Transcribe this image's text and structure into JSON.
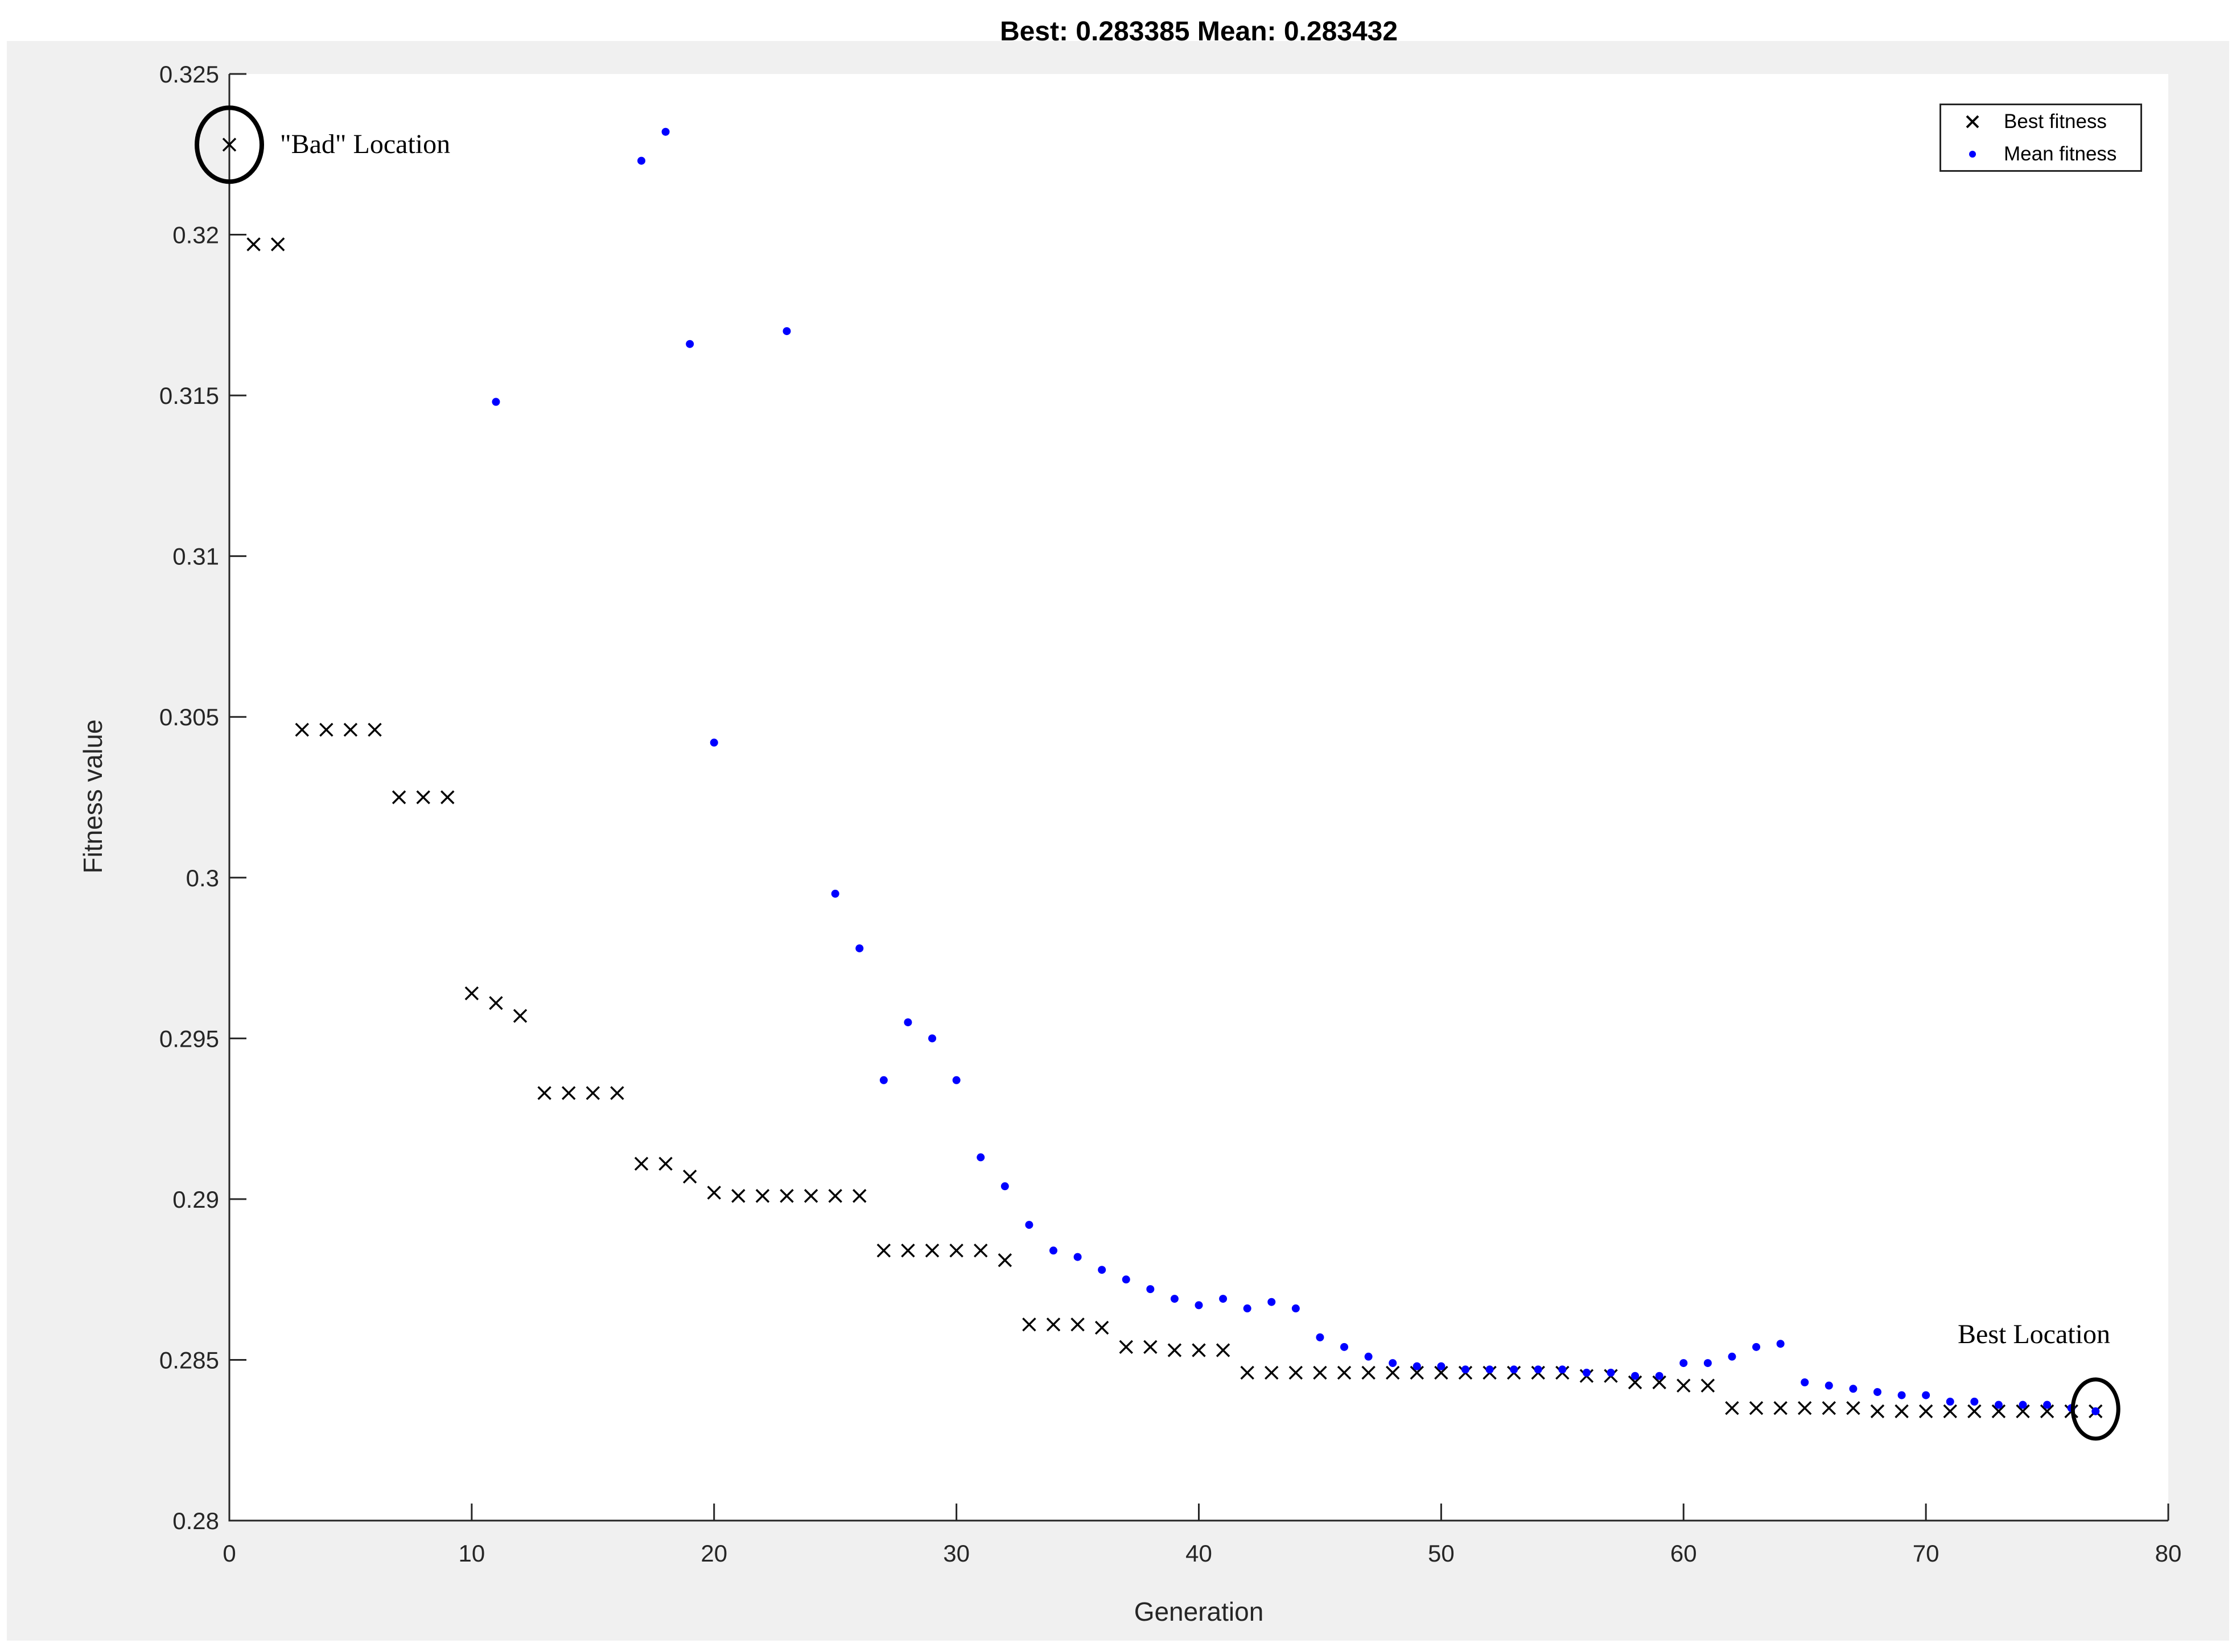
{
  "title": "Best: 0.283385 Mean: 0.283432",
  "figure": {
    "background": "#f0f0f0",
    "page_background": "#ffffff",
    "plot_background": "#ffffff",
    "axis_color": "#262626"
  },
  "axes": {
    "x": {
      "label": "Generation",
      "min": 0,
      "max": 80,
      "tick_labels": [
        "0",
        "10",
        "20",
        "30",
        "40",
        "50",
        "60",
        "70",
        "80"
      ]
    },
    "y": {
      "label": "Fitness value",
      "min": 0.28,
      "max": 0.325,
      "tick_labels": [
        "0.28",
        "0.285",
        "0.29",
        "0.295",
        "0.3",
        "0.305",
        "0.31",
        "0.315",
        "0.32",
        "0.325"
      ]
    }
  },
  "legend": {
    "position": "top-right",
    "items": [
      {
        "label": "Best fitness",
        "marker": "x-marker",
        "color": "#000000"
      },
      {
        "label": "Mean fitness",
        "marker": "dot-marker",
        "color": "#0000ff"
      }
    ]
  },
  "annotations": [
    {
      "label": "\"Bad\" Location",
      "target_generation": 0,
      "series": "Best fitness"
    },
    {
      "label": "Best Location",
      "target_generation": 77,
      "series": "Best fitness"
    }
  ],
  "chart_data": {
    "type": "scatter",
    "title": "Best: 0.283385 Mean: 0.283432",
    "xlabel": "Generation",
    "ylabel": "Fitness value",
    "xlim": [
      0,
      80
    ],
    "ylim": [
      0.28,
      0.325
    ],
    "grid": false,
    "legend_position": "top-right",
    "best_final": 0.283385,
    "mean_final": 0.283432,
    "x": [
      0,
      1,
      2,
      3,
      4,
      5,
      6,
      7,
      8,
      9,
      10,
      11,
      12,
      13,
      14,
      15,
      16,
      17,
      18,
      19,
      20,
      21,
      22,
      23,
      24,
      25,
      26,
      27,
      28,
      29,
      30,
      31,
      32,
      33,
      34,
      35,
      36,
      37,
      38,
      39,
      40,
      41,
      42,
      43,
      44,
      45,
      46,
      47,
      48,
      49,
      50,
      51,
      52,
      53,
      54,
      55,
      56,
      57,
      58,
      59,
      60,
      61,
      62,
      63,
      64,
      65,
      66,
      67,
      68,
      69,
      70,
      71,
      72,
      73,
      74,
      75,
      76,
      77
    ],
    "series": [
      {
        "name": "Best fitness",
        "marker": "x",
        "color": "#000000",
        "values": [
          0.3228,
          0.3197,
          0.3197,
          0.3046,
          0.3046,
          0.3046,
          0.3046,
          0.3025,
          0.3025,
          0.3025,
          0.2964,
          0.2961,
          0.2957,
          0.2933,
          0.2933,
          0.2933,
          0.2933,
          0.2911,
          0.2911,
          0.2907,
          0.2902,
          0.2901,
          0.2901,
          0.2901,
          0.2901,
          0.2901,
          0.2901,
          0.2884,
          0.2884,
          0.2884,
          0.2884,
          0.2884,
          0.2881,
          0.2861,
          0.2861,
          0.2861,
          0.286,
          0.2854,
          0.2854,
          0.2853,
          0.2853,
          0.2853,
          0.2846,
          0.2846,
          0.2846,
          0.2846,
          0.2846,
          0.2846,
          0.2846,
          0.2846,
          0.2846,
          0.2846,
          0.2846,
          0.2846,
          0.2846,
          0.2846,
          0.2845,
          0.2845,
          0.2843,
          0.2843,
          0.2842,
          0.2842,
          0.2835,
          0.2835,
          0.2835,
          0.2835,
          0.2835,
          0.2835,
          0.2834,
          0.2834,
          0.2834,
          0.2834,
          0.2834,
          0.2834,
          0.2834,
          0.2834,
          0.2834,
          0.2834
        ]
      },
      {
        "name": "Mean fitness",
        "marker": ".",
        "color": "#0000ff",
        "values": [
          null,
          null,
          null,
          null,
          null,
          null,
          null,
          null,
          null,
          null,
          null,
          0.3148,
          null,
          null,
          null,
          null,
          null,
          0.3223,
          0.3232,
          0.3166,
          0.3042,
          null,
          null,
          0.317,
          null,
          0.2995,
          0.2978,
          0.2937,
          0.2955,
          0.295,
          0.2937,
          0.2913,
          0.2904,
          0.2892,
          0.2884,
          0.2882,
          0.2878,
          0.2875,
          0.2872,
          0.2869,
          0.2867,
          0.2869,
          0.2866,
          0.2868,
          0.2866,
          0.2857,
          0.2854,
          0.2851,
          0.2849,
          0.2848,
          0.2848,
          0.2847,
          0.2847,
          0.2847,
          0.2847,
          0.2847,
          0.2846,
          0.2846,
          0.2845,
          0.2845,
          0.2849,
          0.2849,
          0.2851,
          0.2854,
          0.2855,
          0.2843,
          0.2842,
          0.2841,
          0.284,
          0.2839,
          0.2839,
          0.2837,
          0.2837,
          0.2836,
          0.2836,
          0.2836,
          0.2835,
          0.2834
        ]
      }
    ]
  }
}
